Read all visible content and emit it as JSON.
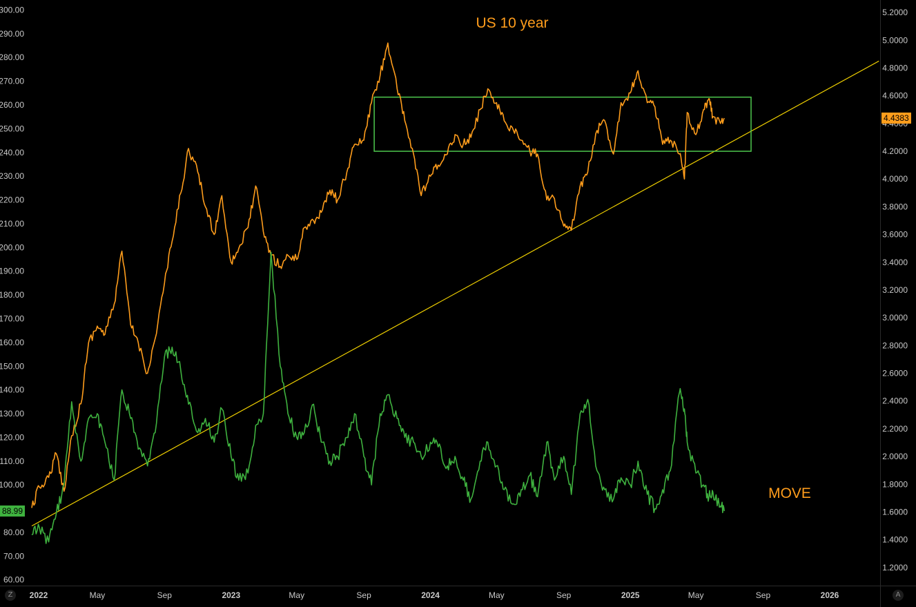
{
  "chart_data": {
    "type": "line",
    "annotations": {
      "top": "US 10 year",
      "bottom": "MOVE"
    },
    "colors": {
      "us10y": "#ff9d1c",
      "move": "#3fb23f",
      "trendline": "#f0d000",
      "range_box": "#4ec94e",
      "grid": "#1a1a1a",
      "axis_text": "#c9c9c9"
    },
    "left_axis": {
      "ticks": [
        "300.00",
        "290.00",
        "280.00",
        "270.00",
        "260.00",
        "250.00",
        "240.00",
        "230.00",
        "220.00",
        "210.00",
        "200.00",
        "190.00",
        "180.00",
        "170.00",
        "160.00",
        "150.00",
        "140.00",
        "130.00",
        "120.00",
        "110.00",
        "100.00",
        "90.00",
        "80.00",
        "70.00",
        "60.00"
      ],
      "range": [
        57.6,
        304.2
      ]
    },
    "right_axis": {
      "ticks": [
        "5.2000",
        "5.0000",
        "4.8000",
        "4.6000",
        "4.4000",
        "4.2000",
        "4.0000",
        "3.8000",
        "3.6000",
        "3.4000",
        "3.2000",
        "3.0000",
        "2.8000",
        "2.6000",
        "2.4000",
        "2.2000",
        "2.0000",
        "1.8000",
        "1.6000",
        "1.4000",
        "1.2000"
      ],
      "range": [
        1.07,
        5.29
      ]
    },
    "x_axis": {
      "ticks": [
        {
          "label": "2022",
          "year": true
        },
        {
          "label": "May",
          "year": false
        },
        {
          "label": "Sep",
          "year": false
        },
        {
          "label": "2023",
          "year": true
        },
        {
          "label": "May",
          "year": false
        },
        {
          "label": "Sep",
          "year": false
        },
        {
          "label": "2024",
          "year": true
        },
        {
          "label": "May",
          "year": false
        },
        {
          "label": "Sep",
          "year": false
        },
        {
          "label": "2025",
          "year": true
        },
        {
          "label": "May",
          "year": false
        },
        {
          "label": "Sep",
          "year": false
        },
        {
          "label": "2026",
          "year": true
        }
      ]
    },
    "last_values": {
      "us10y": "4.4383",
      "move": "88.99"
    },
    "series": [
      {
        "name": "US 10 year",
        "axis": "right",
        "points": [
          [
            "2022-01",
            1.63
          ],
          [
            "2022-01-15",
            1.78
          ],
          [
            "2022-02",
            1.85
          ],
          [
            "2022-02-15",
            2.02
          ],
          [
            "2022-03",
            1.75
          ],
          [
            "2022-03-15",
            2.15
          ],
          [
            "2022-04",
            2.38
          ],
          [
            "2022-04-15",
            2.82
          ],
          [
            "2022-05",
            2.94
          ],
          [
            "2022-05-15",
            2.88
          ],
          [
            "2022-06",
            3.1
          ],
          [
            "2022-06-15",
            3.48
          ],
          [
            "2022-07",
            2.95
          ],
          [
            "2022-07-15",
            2.82
          ],
          [
            "2022-08",
            2.6
          ],
          [
            "2022-08-15",
            2.85
          ],
          [
            "2022-09",
            3.25
          ],
          [
            "2022-09-15",
            3.55
          ],
          [
            "2022-10",
            3.9
          ],
          [
            "2022-10-15",
            4.22
          ],
          [
            "2022-11",
            4.05
          ],
          [
            "2022-11-15",
            3.8
          ],
          [
            "2022-12",
            3.6
          ],
          [
            "2022-12-15",
            3.88
          ],
          [
            "2023-01",
            3.4
          ],
          [
            "2023-01-15",
            3.5
          ],
          [
            "2023-02",
            3.65
          ],
          [
            "2023-02-15",
            3.95
          ],
          [
            "2023-03",
            3.62
          ],
          [
            "2023-03-15",
            3.45
          ],
          [
            "2023-04",
            3.37
          ],
          [
            "2023-04-15",
            3.45
          ],
          [
            "2023-05",
            3.42
          ],
          [
            "2023-05-15",
            3.65
          ],
          [
            "2023-06",
            3.7
          ],
          [
            "2023-06-15",
            3.76
          ],
          [
            "2023-07",
            3.92
          ],
          [
            "2023-07-15",
            3.85
          ],
          [
            "2023-08",
            4.05
          ],
          [
            "2023-08-15",
            4.25
          ],
          [
            "2023-09",
            4.28
          ],
          [
            "2023-09-15",
            4.55
          ],
          [
            "2023-10",
            4.75
          ],
          [
            "2023-10-15",
            4.98
          ],
          [
            "2023-11",
            4.65
          ],
          [
            "2023-11-15",
            4.42
          ],
          [
            "2023-12",
            4.18
          ],
          [
            "2023-12-15",
            3.88
          ],
          [
            "2024-01",
            4.02
          ],
          [
            "2024-01-15",
            4.1
          ],
          [
            "2024-02",
            4.18
          ],
          [
            "2024-02-15",
            4.32
          ],
          [
            "2024-03",
            4.25
          ],
          [
            "2024-03-15",
            4.3
          ],
          [
            "2024-04",
            4.5
          ],
          [
            "2024-04-15",
            4.65
          ],
          [
            "2024-05",
            4.55
          ],
          [
            "2024-05-15",
            4.42
          ],
          [
            "2024-06",
            4.35
          ],
          [
            "2024-06-15",
            4.28
          ],
          [
            "2024-07",
            4.2
          ],
          [
            "2024-07-15",
            4.18
          ],
          [
            "2024-08",
            3.85
          ],
          [
            "2024-08-15",
            3.86
          ],
          [
            "2024-09",
            3.66
          ],
          [
            "2024-09-15",
            3.63
          ],
          [
            "2024-10",
            3.95
          ],
          [
            "2024-10-15",
            4.05
          ],
          [
            "2024-11",
            4.35
          ],
          [
            "2024-11-15",
            4.42
          ],
          [
            "2024-12",
            4.18
          ],
          [
            "2024-12-15",
            4.55
          ],
          [
            "2025-01",
            4.62
          ],
          [
            "2025-01-15",
            4.78
          ],
          [
            "2025-02",
            4.55
          ],
          [
            "2025-02-15",
            4.52
          ],
          [
            "2025-03",
            4.25
          ],
          [
            "2025-03-15",
            4.28
          ],
          [
            "2025-04",
            4.18
          ],
          [
            "2025-04-10",
            4.0
          ],
          [
            "2025-04-15",
            4.48
          ],
          [
            "2025-05",
            4.32
          ],
          [
            "2025-05-15",
            4.5
          ],
          [
            "2025-05-25",
            4.58
          ],
          [
            "2025-06",
            4.45
          ],
          [
            "2025-06-15",
            4.4
          ],
          [
            "2025-06-22",
            4.4383
          ]
        ]
      },
      {
        "name": "MOVE",
        "axis": "left",
        "points": [
          [
            "2022-01",
            79
          ],
          [
            "2022-01-15",
            82
          ],
          [
            "2022-02",
            76
          ],
          [
            "2022-02-15",
            88
          ],
          [
            "2022-03",
            100
          ],
          [
            "2022-03-15",
            135
          ],
          [
            "2022-04",
            110
          ],
          [
            "2022-04-15",
            128
          ],
          [
            "2022-05",
            130
          ],
          [
            "2022-05-15",
            118
          ],
          [
            "2022-06",
            102
          ],
          [
            "2022-06-15",
            140
          ],
          [
            "2022-07",
            128
          ],
          [
            "2022-07-15",
            115
          ],
          [
            "2022-08",
            108
          ],
          [
            "2022-08-15",
            122
          ],
          [
            "2022-09",
            154
          ],
          [
            "2022-09-15",
            158
          ],
          [
            "2022-10",
            148
          ],
          [
            "2022-10-15",
            134
          ],
          [
            "2022-11",
            122
          ],
          [
            "2022-11-15",
            128
          ],
          [
            "2022-12",
            118
          ],
          [
            "2022-12-15",
            132
          ],
          [
            "2023-01",
            112
          ],
          [
            "2023-01-15",
            102
          ],
          [
            "2023-02",
            105
          ],
          [
            "2023-02-15",
            125
          ],
          [
            "2023-03",
            130
          ],
          [
            "2023-03-15",
            198
          ],
          [
            "2023-04",
            150
          ],
          [
            "2023-04-15",
            130
          ],
          [
            "2023-05",
            120
          ],
          [
            "2023-05-15",
            122
          ],
          [
            "2023-06",
            134
          ],
          [
            "2023-06-15",
            118
          ],
          [
            "2023-07",
            110
          ],
          [
            "2023-07-15",
            112
          ],
          [
            "2023-08",
            120
          ],
          [
            "2023-08-15",
            130
          ],
          [
            "2023-09",
            112
          ],
          [
            "2023-09-15",
            100
          ],
          [
            "2023-10",
            130
          ],
          [
            "2023-10-15",
            138
          ],
          [
            "2023-11",
            128
          ],
          [
            "2023-11-15",
            120
          ],
          [
            "2023-12",
            118
          ],
          [
            "2023-12-15",
            112
          ],
          [
            "2024-01",
            118
          ],
          [
            "2024-01-15",
            116
          ],
          [
            "2024-02",
            108
          ],
          [
            "2024-02-15",
            112
          ],
          [
            "2024-03",
            102
          ],
          [
            "2024-03-15",
            94
          ],
          [
            "2024-04",
            110
          ],
          [
            "2024-04-15",
            118
          ],
          [
            "2024-05",
            108
          ],
          [
            "2024-05-15",
            98
          ],
          [
            "2024-06",
            92
          ],
          [
            "2024-06-15",
            98
          ],
          [
            "2024-07",
            104
          ],
          [
            "2024-07-15",
            95
          ],
          [
            "2024-08",
            118
          ],
          [
            "2024-08-15",
            102
          ],
          [
            "2024-09",
            112
          ],
          [
            "2024-09-15",
            96
          ],
          [
            "2024-10",
            130
          ],
          [
            "2024-10-15",
            136
          ],
          [
            "2024-11",
            106
          ],
          [
            "2024-11-15",
            98
          ],
          [
            "2024-12",
            94
          ],
          [
            "2024-12-15",
            103
          ],
          [
            "2025-01",
            100
          ],
          [
            "2025-01-15",
            110
          ],
          [
            "2025-02",
            96
          ],
          [
            "2025-02-15",
            90
          ],
          [
            "2025-03",
            98
          ],
          [
            "2025-03-15",
            106
          ],
          [
            "2025-04",
            139
          ],
          [
            "2025-04-10",
            132
          ],
          [
            "2025-04-15",
            118
          ],
          [
            "2025-05",
            105
          ],
          [
            "2025-05-15",
            100
          ],
          [
            "2025-05-25",
            95
          ],
          [
            "2025-06",
            97
          ],
          [
            "2025-06-15",
            91
          ],
          [
            "2025-06-22",
            88.99
          ]
        ]
      }
    ],
    "trendline": {
      "from": [
        "2022-01",
        1.5
      ],
      "to": [
        "2026-04",
        4.85
      ],
      "axis": "right"
    },
    "range_box": {
      "from": "2023-09-20",
      "to": "2025-08-10",
      "top": 4.59,
      "bottom": 4.2,
      "axis": "right"
    },
    "grid": false,
    "legend": "none"
  }
}
